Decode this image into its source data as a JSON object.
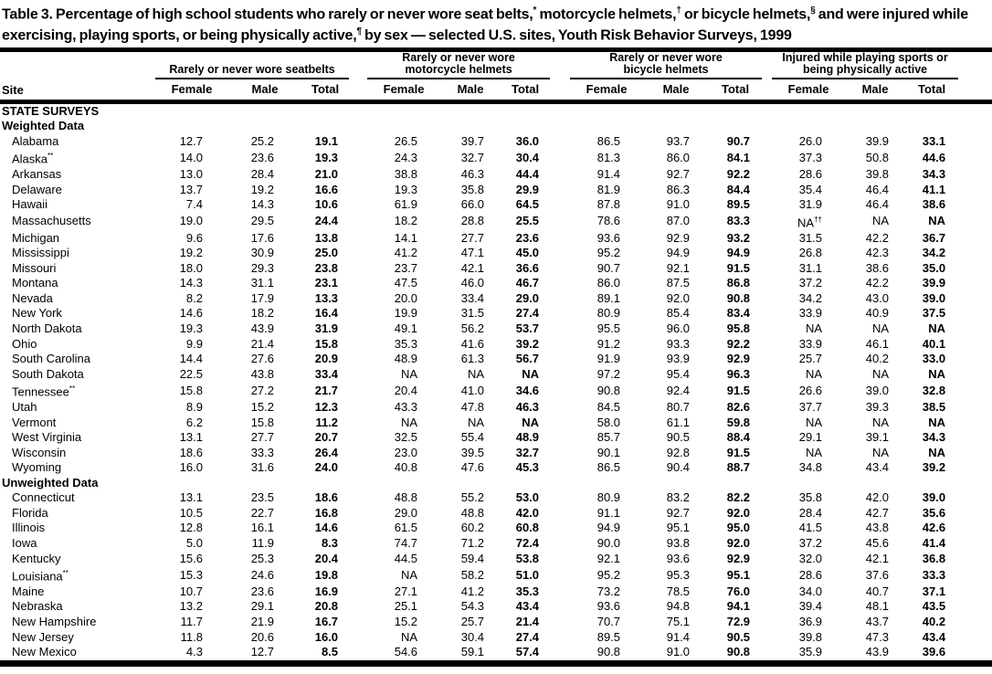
{
  "title": "Table 3. Percentage of high school students who rarely or never wore seat belts,* motorcycle helmets,† or bicycle helmets,§ and were injured while exercising, playing sports, or being physically active,¶ by sex — selected U.S. sites, Youth Risk Behavior Surveys, 1999",
  "header": {
    "site_label": "Site",
    "groups": [
      {
        "label": "Rarely or never wore seatbelts"
      },
      {
        "label": "Rarely or never wore motorcycle helmets"
      },
      {
        "label": "Rarely or never wore bicycle helmets"
      },
      {
        "label": "Injured while playing sports or being physically active"
      }
    ],
    "sub_columns": [
      "Female",
      "Male",
      "Total"
    ]
  },
  "rows": [
    {
      "type": "section",
      "label": "STATE SURVEYS"
    },
    {
      "type": "section",
      "label": "Weighted Data"
    },
    {
      "type": "data",
      "site": "Alabama",
      "values": [
        "12.7",
        "25.2",
        "19.1",
        "26.5",
        "39.7",
        "36.0",
        "86.5",
        "93.7",
        "90.7",
        "26.0",
        "39.9",
        "33.1"
      ]
    },
    {
      "type": "data",
      "site": "Alaska**",
      "values": [
        "14.0",
        "23.6",
        "19.3",
        "24.3",
        "32.7",
        "30.4",
        "81.3",
        "86.0",
        "84.1",
        "37.3",
        "50.8",
        "44.6"
      ]
    },
    {
      "type": "data",
      "site": "Arkansas",
      "values": [
        "13.0",
        "28.4",
        "21.0",
        "38.8",
        "46.3",
        "44.4",
        "91.4",
        "92.7",
        "92.2",
        "28.6",
        "39.8",
        "34.3"
      ]
    },
    {
      "type": "data",
      "site": "Delaware",
      "values": [
        "13.7",
        "19.2",
        "16.6",
        "19.3",
        "35.8",
        "29.9",
        "81.9",
        "86.3",
        "84.4",
        "35.4",
        "46.4",
        "41.1"
      ]
    },
    {
      "type": "data",
      "site": "Hawaii",
      "values": [
        "7.4",
        "14.3",
        "10.6",
        "61.9",
        "66.0",
        "64.5",
        "87.8",
        "91.0",
        "89.5",
        "31.9",
        "46.4",
        "38.6"
      ]
    },
    {
      "type": "data",
      "site": "Massachusetts",
      "values": [
        "19.0",
        "29.5",
        "24.4",
        "18.2",
        "28.8",
        "25.5",
        "78.6",
        "87.0",
        "83.3",
        "NA††",
        "NA",
        "NA"
      ]
    },
    {
      "type": "data",
      "site": "Michigan",
      "values": [
        "9.6",
        "17.6",
        "13.8",
        "14.1",
        "27.7",
        "23.6",
        "93.6",
        "92.9",
        "93.2",
        "31.5",
        "42.2",
        "36.7"
      ]
    },
    {
      "type": "data",
      "site": "Mississippi",
      "values": [
        "19.2",
        "30.9",
        "25.0",
        "41.2",
        "47.1",
        "45.0",
        "95.2",
        "94.9",
        "94.9",
        "26.8",
        "42.3",
        "34.2"
      ]
    },
    {
      "type": "data",
      "site": "Missouri",
      "values": [
        "18.0",
        "29.3",
        "23.8",
        "23.7",
        "42.1",
        "36.6",
        "90.7",
        "92.1",
        "91.5",
        "31.1",
        "38.6",
        "35.0"
      ]
    },
    {
      "type": "data",
      "site": "Montana",
      "values": [
        "14.3",
        "31.1",
        "23.1",
        "47.5",
        "46.0",
        "46.7",
        "86.0",
        "87.5",
        "86.8",
        "37.2",
        "42.2",
        "39.9"
      ]
    },
    {
      "type": "data",
      "site": "Nevada",
      "values": [
        "8.2",
        "17.9",
        "13.3",
        "20.0",
        "33.4",
        "29.0",
        "89.1",
        "92.0",
        "90.8",
        "34.2",
        "43.0",
        "39.0"
      ]
    },
    {
      "type": "data",
      "site": "New York",
      "values": [
        "14.6",
        "18.2",
        "16.4",
        "19.9",
        "31.5",
        "27.4",
        "80.9",
        "85.4",
        "83.4",
        "33.9",
        "40.9",
        "37.5"
      ]
    },
    {
      "type": "data",
      "site": "North Dakota",
      "values": [
        "19.3",
        "43.9",
        "31.9",
        "49.1",
        "56.2",
        "53.7",
        "95.5",
        "96.0",
        "95.8",
        "NA",
        "NA",
        "NA"
      ]
    },
    {
      "type": "data",
      "site": "Ohio",
      "values": [
        "9.9",
        "21.4",
        "15.8",
        "35.3",
        "41.6",
        "39.2",
        "91.2",
        "93.3",
        "92.2",
        "33.9",
        "46.1",
        "40.1"
      ]
    },
    {
      "type": "data",
      "site": "South Carolina",
      "values": [
        "14.4",
        "27.6",
        "20.9",
        "48.9",
        "61.3",
        "56.7",
        "91.9",
        "93.9",
        "92.9",
        "25.7",
        "40.2",
        "33.0"
      ]
    },
    {
      "type": "data",
      "site": "South Dakota",
      "values": [
        "22.5",
        "43.8",
        "33.4",
        "NA",
        "NA",
        "NA",
        "97.2",
        "95.4",
        "96.3",
        "NA",
        "NA",
        "NA"
      ]
    },
    {
      "type": "data",
      "site": "Tennessee**",
      "values": [
        "15.8",
        "27.2",
        "21.7",
        "20.4",
        "41.0",
        "34.6",
        "90.8",
        "92.4",
        "91.5",
        "26.6",
        "39.0",
        "32.8"
      ]
    },
    {
      "type": "data",
      "site": "Utah",
      "values": [
        "8.9",
        "15.2",
        "12.3",
        "43.3",
        "47.8",
        "46.3",
        "84.5",
        "80.7",
        "82.6",
        "37.7",
        "39.3",
        "38.5"
      ]
    },
    {
      "type": "data",
      "site": "Vermont",
      "values": [
        "6.2",
        "15.8",
        "11.2",
        "NA",
        "NA",
        "NA",
        "58.0",
        "61.1",
        "59.8",
        "NA",
        "NA",
        "NA"
      ]
    },
    {
      "type": "data",
      "site": "West Virginia",
      "values": [
        "13.1",
        "27.7",
        "20.7",
        "32.5",
        "55.4",
        "48.9",
        "85.7",
        "90.5",
        "88.4",
        "29.1",
        "39.1",
        "34.3"
      ]
    },
    {
      "type": "data",
      "site": "Wisconsin",
      "values": [
        "18.6",
        "33.3",
        "26.4",
        "23.0",
        "39.5",
        "32.7",
        "90.1",
        "92.8",
        "91.5",
        "NA",
        "NA",
        "NA"
      ]
    },
    {
      "type": "data",
      "site": "Wyoming",
      "values": [
        "16.0",
        "31.6",
        "24.0",
        "40.8",
        "47.6",
        "45.3",
        "86.5",
        "90.4",
        "88.7",
        "34.8",
        "43.4",
        "39.2"
      ]
    },
    {
      "type": "section",
      "label": "Unweighted Data"
    },
    {
      "type": "data",
      "site": "Connecticut",
      "values": [
        "13.1",
        "23.5",
        "18.6",
        "48.8",
        "55.2",
        "53.0",
        "80.9",
        "83.2",
        "82.2",
        "35.8",
        "42.0",
        "39.0"
      ]
    },
    {
      "type": "data",
      "site": "Florida",
      "values": [
        "10.5",
        "22.7",
        "16.8",
        "29.0",
        "48.8",
        "42.0",
        "91.1",
        "92.7",
        "92.0",
        "28.4",
        "42.7",
        "35.6"
      ]
    },
    {
      "type": "data",
      "site": "Illinois",
      "values": [
        "12.8",
        "16.1",
        "14.6",
        "61.5",
        "60.2",
        "60.8",
        "94.9",
        "95.1",
        "95.0",
        "41.5",
        "43.8",
        "42.6"
      ]
    },
    {
      "type": "data",
      "site": "Iowa",
      "values": [
        "5.0",
        "11.9",
        "8.3",
        "74.7",
        "71.2",
        "72.4",
        "90.0",
        "93.8",
        "92.0",
        "37.2",
        "45.6",
        "41.4"
      ]
    },
    {
      "type": "data",
      "site": "Kentucky",
      "values": [
        "15.6",
        "25.3",
        "20.4",
        "44.5",
        "59.4",
        "53.8",
        "92.1",
        "93.6",
        "92.9",
        "32.0",
        "42.1",
        "36.8"
      ]
    },
    {
      "type": "data",
      "site": "Louisiana**",
      "values": [
        "15.3",
        "24.6",
        "19.8",
        "NA",
        "58.2",
        "51.0",
        "95.2",
        "95.3",
        "95.1",
        "28.6",
        "37.6",
        "33.3"
      ]
    },
    {
      "type": "data",
      "site": "Maine",
      "values": [
        "10.7",
        "23.6",
        "16.9",
        "27.1",
        "41.2",
        "35.3",
        "73.2",
        "78.5",
        "76.0",
        "34.0",
        "40.7",
        "37.1"
      ]
    },
    {
      "type": "data",
      "site": "Nebraska",
      "values": [
        "13.2",
        "29.1",
        "20.8",
        "25.1",
        "54.3",
        "43.4",
        "93.6",
        "94.8",
        "94.1",
        "39.4",
        "48.1",
        "43.5"
      ]
    },
    {
      "type": "data",
      "site": "New Hampshire",
      "values": [
        "11.7",
        "21.9",
        "16.7",
        "15.2",
        "25.7",
        "21.4",
        "70.7",
        "75.1",
        "72.9",
        "36.9",
        "43.7",
        "40.2"
      ]
    },
    {
      "type": "data",
      "site": "New Jersey",
      "values": [
        "11.8",
        "20.6",
        "16.0",
        "NA",
        "30.4",
        "27.4",
        "89.5",
        "91.4",
        "90.5",
        "39.8",
        "47.3",
        "43.4"
      ]
    },
    {
      "type": "data",
      "site": "New Mexico",
      "values": [
        "4.3",
        "12.7",
        "8.5",
        "54.6",
        "59.1",
        "57.4",
        "90.8",
        "91.0",
        "90.8",
        "35.9",
        "43.9",
        "39.6"
      ]
    }
  ]
}
